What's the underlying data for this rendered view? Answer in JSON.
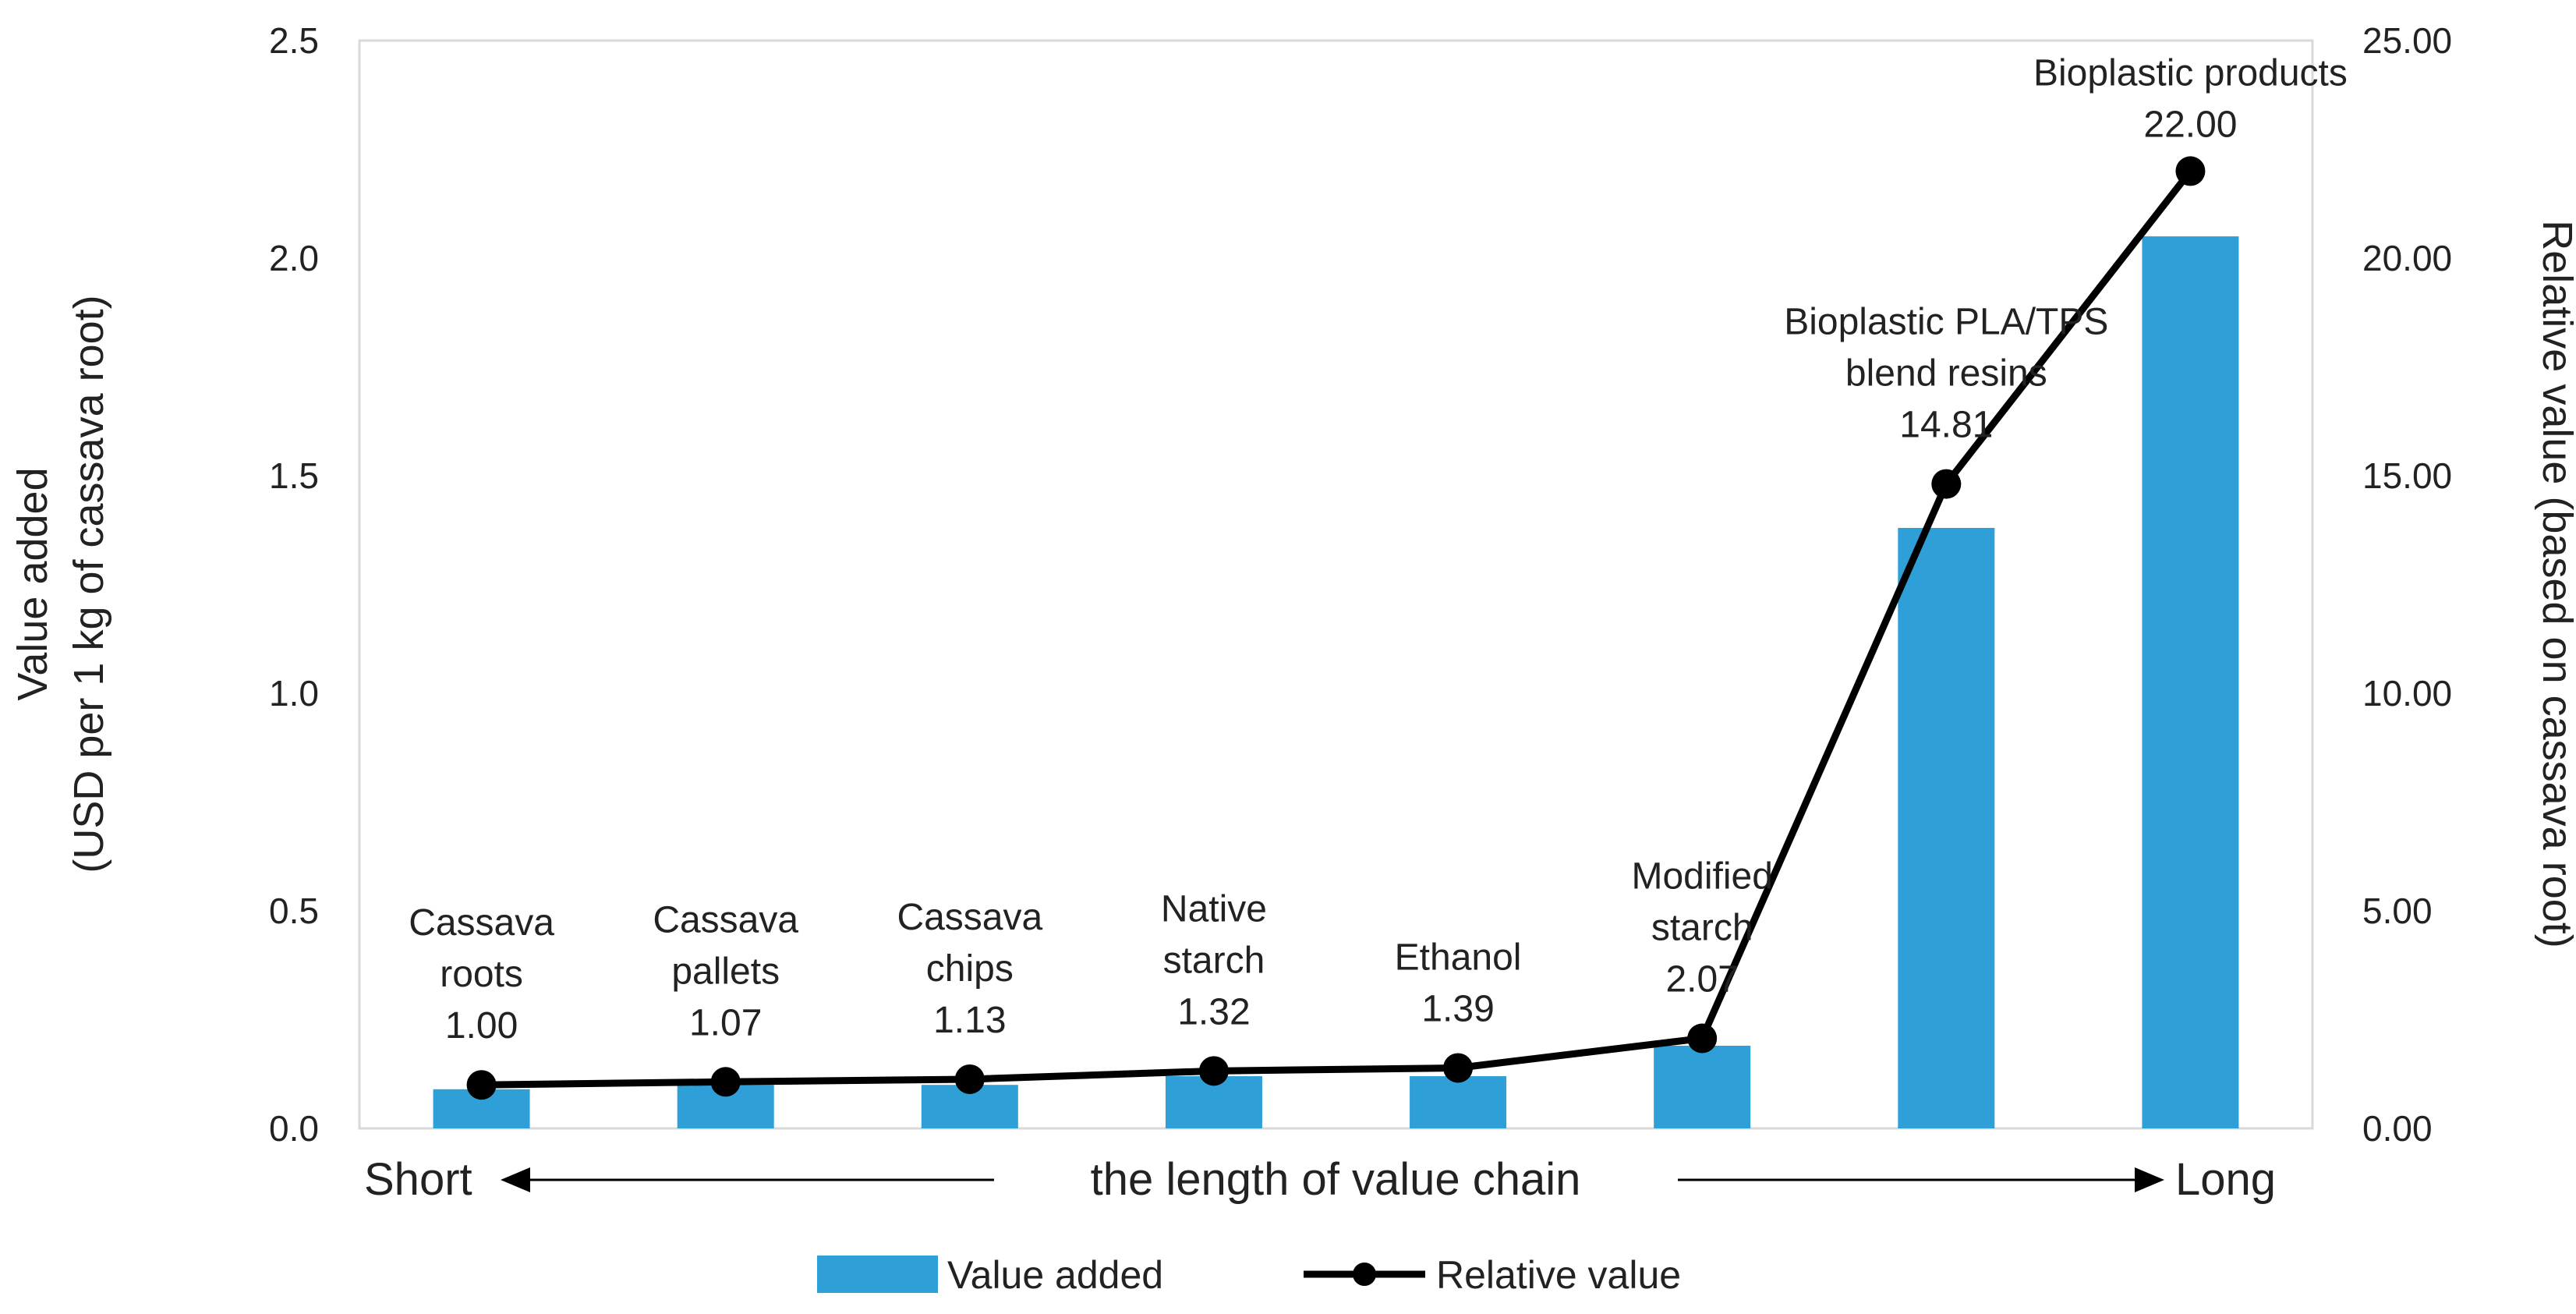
{
  "chart_data": {
    "type": "bar+line",
    "categories": [
      "Cassava roots",
      "Cassava pallets",
      "Cassava chips",
      "Native starch",
      "Ethanol",
      "Modified starch",
      "Bioplastic PLA/TPS blend resins",
      "Bioplastic products"
    ],
    "series": [
      {
        "name": "Value added",
        "type": "bar",
        "axis": "left",
        "color": "#2f9fd8",
        "values": [
          0.09,
          0.1,
          0.1,
          0.12,
          0.12,
          0.19,
          1.38,
          2.05
        ]
      },
      {
        "name": "Relative value",
        "type": "line",
        "axis": "right",
        "color": "#000000",
        "values": [
          1.0,
          1.07,
          1.13,
          1.32,
          1.39,
          2.07,
          14.81,
          22.0
        ]
      }
    ],
    "data_labels": [
      {
        "lines": [
          "Cassava",
          "roots",
          "1.00"
        ]
      },
      {
        "lines": [
          "Cassava",
          "pallets",
          "1.07"
        ]
      },
      {
        "lines": [
          "Cassava",
          "chips",
          "1.13"
        ]
      },
      {
        "lines": [
          "Native",
          "starch",
          "1.32"
        ]
      },
      {
        "lines": [
          "Ethanol",
          "1.39"
        ]
      },
      {
        "lines": [
          "Modified",
          "starch",
          "2.07"
        ]
      },
      {
        "lines": [
          "Bioplastic PLA/TPS",
          "blend resins",
          "14.81"
        ]
      },
      {
        "lines": [
          "Bioplastic products",
          "22.00"
        ]
      }
    ],
    "y_left": {
      "label_line1": "Value added",
      "label_line2": "(USD per 1 kg of cassava root)",
      "range": [
        0,
        2.5
      ],
      "ticks": [
        "0.0",
        "0.5",
        "1.0",
        "1.5",
        "2.0",
        "2.5"
      ]
    },
    "y_right": {
      "label": "Relative value (based on cassava root)",
      "range": [
        0,
        25
      ],
      "ticks": [
        "0.00",
        "5.00",
        "10.00",
        "15.00",
        "20.00",
        "25.00"
      ]
    },
    "x_axis": {
      "short_label": "Short",
      "middle_label": "the length of value chain",
      "long_label": "Long"
    },
    "legend": {
      "position": "bottom",
      "items": [
        "Value added",
        "Relative value"
      ]
    },
    "grid": false
  }
}
